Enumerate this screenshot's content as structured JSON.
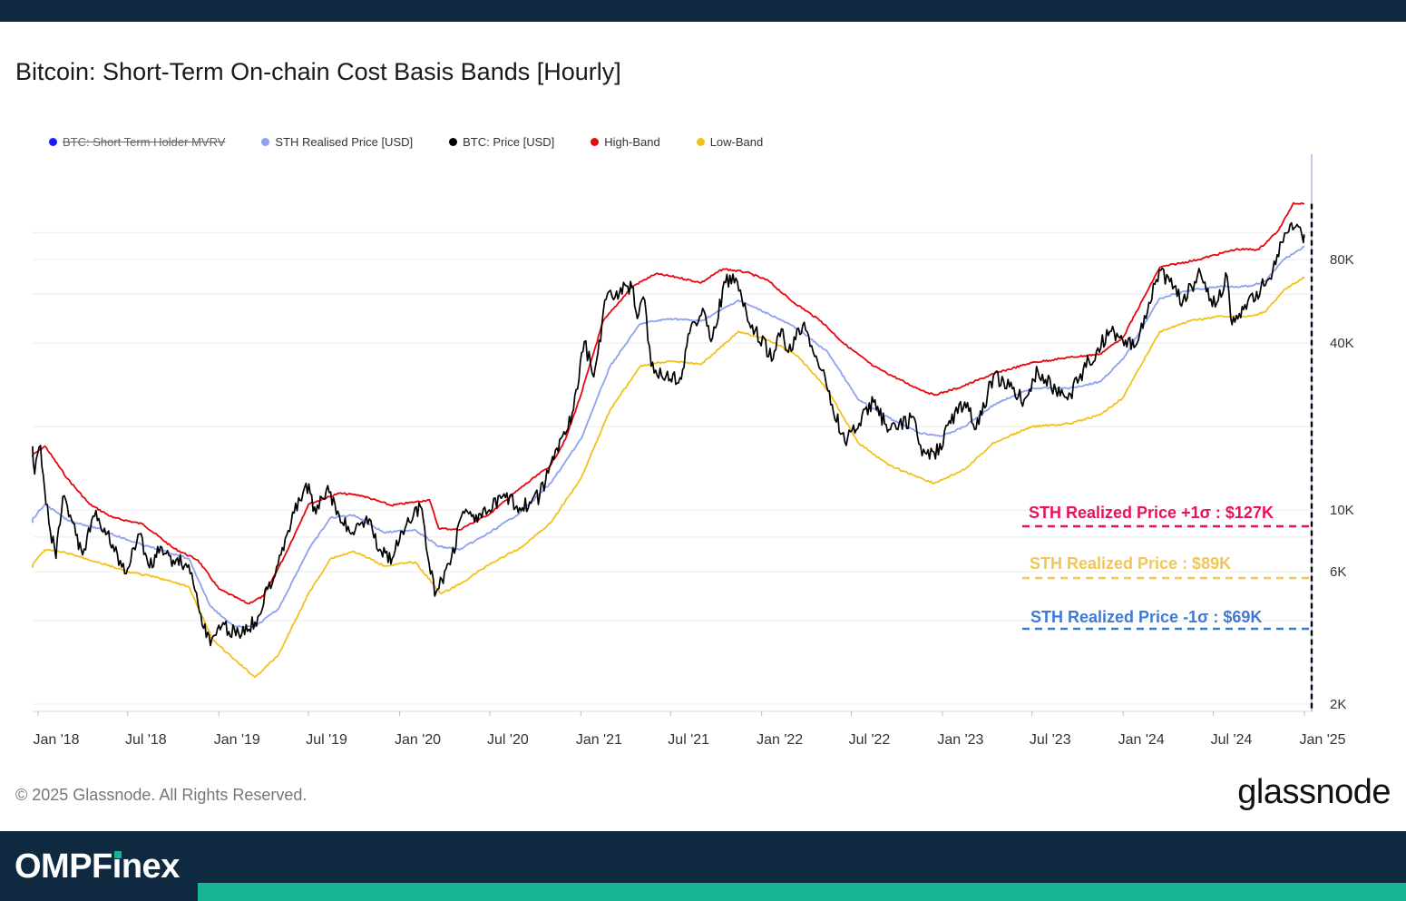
{
  "page": {
    "title": "Bitcoin: Short-Term On-chain Cost Basis Bands [Hourly]",
    "copyright": "© 2025 Glassnode. All Rights Reserved.",
    "brand_logo": "glassnode",
    "footer_brand": {
      "prefix": "OMPF",
      "i": "i",
      "suffix": "nex"
    },
    "colors": {
      "top_bar": "#0f2a40",
      "accent": "#16b692"
    }
  },
  "legend": [
    {
      "label": "BTC: Short Term Holder MVRV",
      "color": "#1a1aff",
      "disabled": true
    },
    {
      "label": "STH Realised Price [USD]",
      "color": "#8ea2f0"
    },
    {
      "label": "BTC: Price [USD]",
      "color": "#000000"
    },
    {
      "label": "High-Band",
      "color": "#e8070f"
    },
    {
      "label": "Low-Band",
      "color": "#f2c11d"
    }
  ],
  "chart_data": {
    "type": "line",
    "scale": "log",
    "ylim": [
      1800,
      200000
    ],
    "xlim": [
      "2017-12-15",
      "2025-01-05"
    ],
    "grid": true,
    "legend_position": "top-left",
    "x_ticks": [
      {
        "label": "Jan '18",
        "date": "2018-01-01"
      },
      {
        "label": "Jul '18",
        "date": "2018-07-01"
      },
      {
        "label": "Jan '19",
        "date": "2019-01-01"
      },
      {
        "label": "Jul '19",
        "date": "2019-07-01"
      },
      {
        "label": "Jan '20",
        "date": "2020-01-01"
      },
      {
        "label": "Jul '20",
        "date": "2020-07-01"
      },
      {
        "label": "Jan '21",
        "date": "2021-01-01"
      },
      {
        "label": "Jul '21",
        "date": "2021-07-01"
      },
      {
        "label": "Jan '22",
        "date": "2022-01-01"
      },
      {
        "label": "Jul '22",
        "date": "2022-07-01"
      },
      {
        "label": "Jan '23",
        "date": "2023-01-01"
      },
      {
        "label": "Jul '23",
        "date": "2023-07-01"
      },
      {
        "label": "Jan '24",
        "date": "2024-01-01"
      },
      {
        "label": "Jul '24",
        "date": "2024-07-01"
      },
      {
        "label": "Jan '25",
        "date": "2025-01-01"
      }
    ],
    "y_ticks": [
      {
        "label": "2K",
        "value": 2000
      },
      {
        "label": "6K",
        "value": 6000
      },
      {
        "label": "10K",
        "value": 10000
      },
      {
        "label": "40K",
        "value": 40000
      },
      {
        "label": "80K",
        "value": 80000
      }
    ],
    "series": [
      {
        "name": "High-Band",
        "color": "#e8070f",
        "points": [
          [
            "2017-12-15",
            15500
          ],
          [
            "2018-01-15",
            17000
          ],
          [
            "2018-03-01",
            13000
          ],
          [
            "2018-04-15",
            10500
          ],
          [
            "2018-06-01",
            9400
          ],
          [
            "2018-08-01",
            8900
          ],
          [
            "2018-10-01",
            7300
          ],
          [
            "2018-11-20",
            6600
          ],
          [
            "2019-01-01",
            5200
          ],
          [
            "2019-03-01",
            4600
          ],
          [
            "2019-04-01",
            4900
          ],
          [
            "2019-05-15",
            6900
          ],
          [
            "2019-07-01",
            10500
          ],
          [
            "2019-09-01",
            11500
          ],
          [
            "2019-10-15",
            11300
          ],
          [
            "2019-12-15",
            10400
          ],
          [
            "2020-02-01",
            10700
          ],
          [
            "2020-03-01",
            10900
          ],
          [
            "2020-03-20",
            8600
          ],
          [
            "2020-05-01",
            8500
          ],
          [
            "2020-07-01",
            9700
          ],
          [
            "2020-09-01",
            12000
          ],
          [
            "2020-11-01",
            14500
          ],
          [
            "2020-12-01",
            18000
          ],
          [
            "2021-01-01",
            26000
          ],
          [
            "2021-02-15",
            48000
          ],
          [
            "2021-04-15",
            64000
          ],
          [
            "2021-06-01",
            71000
          ],
          [
            "2021-07-15",
            69000
          ],
          [
            "2021-09-01",
            66000
          ],
          [
            "2021-10-15",
            74000
          ],
          [
            "2021-12-01",
            72000
          ],
          [
            "2022-01-15",
            67000
          ],
          [
            "2022-03-01",
            57000
          ],
          [
            "2022-05-01",
            48000
          ],
          [
            "2022-06-15",
            40000
          ],
          [
            "2022-08-15",
            33000
          ],
          [
            "2022-11-01",
            28000
          ],
          [
            "2022-12-15",
            26000
          ],
          [
            "2023-02-01",
            27500
          ],
          [
            "2023-04-15",
            31000
          ],
          [
            "2023-07-01",
            34000
          ],
          [
            "2023-09-15",
            35500
          ],
          [
            "2023-11-15",
            36500
          ],
          [
            "2024-01-01",
            42000
          ],
          [
            "2024-03-15",
            75000
          ],
          [
            "2024-06-01",
            80000
          ],
          [
            "2024-08-15",
            87000
          ],
          [
            "2024-10-01",
            87000
          ],
          [
            "2024-11-10",
            102000
          ],
          [
            "2024-12-10",
            128000
          ],
          [
            "2025-01-01",
            127000
          ]
        ]
      },
      {
        "name": "STH Realised Price [USD]",
        "color": "#8ea2f0",
        "points": [
          [
            "2017-12-15",
            9000
          ],
          [
            "2018-01-15",
            10500
          ],
          [
            "2018-03-01",
            9200
          ],
          [
            "2018-05-01",
            8600
          ],
          [
            "2018-07-01",
            7800
          ],
          [
            "2018-09-01",
            7200
          ],
          [
            "2018-11-01",
            6700
          ],
          [
            "2018-12-15",
            4500
          ],
          [
            "2019-02-01",
            3800
          ],
          [
            "2019-03-15",
            3800
          ],
          [
            "2019-05-01",
            4400
          ],
          [
            "2019-07-01",
            7200
          ],
          [
            "2019-08-15",
            9400
          ],
          [
            "2019-10-01",
            9600
          ],
          [
            "2019-12-01",
            8300
          ],
          [
            "2020-02-01",
            8500
          ],
          [
            "2020-03-20",
            7400
          ],
          [
            "2020-05-01",
            7200
          ],
          [
            "2020-07-01",
            8300
          ],
          [
            "2020-09-01",
            9800
          ],
          [
            "2020-11-01",
            12500
          ],
          [
            "2021-01-01",
            18000
          ],
          [
            "2021-03-01",
            33000
          ],
          [
            "2021-05-01",
            47000
          ],
          [
            "2021-07-01",
            49000
          ],
          [
            "2021-09-01",
            48000
          ],
          [
            "2021-11-15",
            57000
          ],
          [
            "2022-01-15",
            51000
          ],
          [
            "2022-03-15",
            45000
          ],
          [
            "2022-05-15",
            37000
          ],
          [
            "2022-07-15",
            25000
          ],
          [
            "2022-09-15",
            21500
          ],
          [
            "2022-11-15",
            19000
          ],
          [
            "2023-01-01",
            18500
          ],
          [
            "2023-02-15",
            20000
          ],
          [
            "2023-04-15",
            24000
          ],
          [
            "2023-07-01",
            27500
          ],
          [
            "2023-09-15",
            27500
          ],
          [
            "2023-11-15",
            29000
          ],
          [
            "2024-01-01",
            35000
          ],
          [
            "2024-03-15",
            58000
          ],
          [
            "2024-05-15",
            62000
          ],
          [
            "2024-07-15",
            64000
          ],
          [
            "2024-09-15",
            64000
          ],
          [
            "2024-10-15",
            67000
          ],
          [
            "2024-11-20",
            80000
          ],
          [
            "2025-01-01",
            89000
          ]
        ]
      },
      {
        "name": "Low-Band",
        "color": "#f2c11d",
        "points": [
          [
            "2017-12-15",
            6200
          ],
          [
            "2018-01-15",
            7200
          ],
          [
            "2018-03-01",
            7000
          ],
          [
            "2018-05-01",
            6500
          ],
          [
            "2018-07-01",
            6000
          ],
          [
            "2018-09-01",
            5700
          ],
          [
            "2018-11-01",
            5300
          ],
          [
            "2018-12-20",
            3400
          ],
          [
            "2019-02-01",
            2900
          ],
          [
            "2019-03-15",
            2500
          ],
          [
            "2019-05-01",
            3000
          ],
          [
            "2019-07-01",
            5000
          ],
          [
            "2019-08-15",
            6700
          ],
          [
            "2019-10-01",
            7100
          ],
          [
            "2019-12-01",
            6300
          ],
          [
            "2020-02-01",
            6500
          ],
          [
            "2020-03-25",
            5000
          ],
          [
            "2020-05-01",
            5400
          ],
          [
            "2020-07-01",
            6400
          ],
          [
            "2020-09-01",
            7300
          ],
          [
            "2020-11-01",
            9000
          ],
          [
            "2021-01-01",
            13000
          ],
          [
            "2021-03-01",
            23000
          ],
          [
            "2021-05-01",
            33000
          ],
          [
            "2021-07-01",
            34500
          ],
          [
            "2021-09-01",
            33500
          ],
          [
            "2021-11-15",
            44000
          ],
          [
            "2022-01-15",
            41000
          ],
          [
            "2022-03-15",
            36000
          ],
          [
            "2022-05-15",
            27000
          ],
          [
            "2022-07-15",
            17500
          ],
          [
            "2022-09-15",
            14500
          ],
          [
            "2022-12-15",
            12500
          ],
          [
            "2023-02-15",
            14000
          ],
          [
            "2023-04-15",
            17500
          ],
          [
            "2023-07-01",
            20000
          ],
          [
            "2023-09-15",
            20500
          ],
          [
            "2023-11-15",
            22000
          ],
          [
            "2024-01-01",
            25500
          ],
          [
            "2024-03-15",
            44000
          ],
          [
            "2024-05-15",
            48000
          ],
          [
            "2024-07-15",
            50000
          ],
          [
            "2024-09-15",
            50000
          ],
          [
            "2024-10-15",
            52000
          ],
          [
            "2024-11-20",
            62000
          ],
          [
            "2025-01-01",
            69000
          ]
        ]
      },
      {
        "name": "BTC: Price [USD]",
        "color": "#000000",
        "points": [
          [
            "2017-12-17",
            17000
          ],
          [
            "2017-12-25",
            13500
          ],
          [
            "2018-01-06",
            17100
          ],
          [
            "2018-01-17",
            10500
          ],
          [
            "2018-02-06",
            6700
          ],
          [
            "2018-02-20",
            11200
          ],
          [
            "2018-03-10",
            9200
          ],
          [
            "2018-04-01",
            6900
          ],
          [
            "2018-04-25",
            9500
          ],
          [
            "2018-05-15",
            8600
          ],
          [
            "2018-06-01",
            7500
          ],
          [
            "2018-06-25",
            5900
          ],
          [
            "2018-07-25",
            8200
          ],
          [
            "2018-08-14",
            6200
          ],
          [
            "2018-09-05",
            7400
          ],
          [
            "2018-10-01",
            6600
          ],
          [
            "2018-11-01",
            6350
          ],
          [
            "2018-11-20",
            4600
          ],
          [
            "2018-12-15",
            3250
          ],
          [
            "2019-01-01",
            3850
          ],
          [
            "2019-02-10",
            3600
          ],
          [
            "2019-03-15",
            3950
          ],
          [
            "2019-04-10",
            5200
          ],
          [
            "2019-05-15",
            7900
          ],
          [
            "2019-06-26",
            12500
          ],
          [
            "2019-07-16",
            9700
          ],
          [
            "2019-08-06",
            11800
          ],
          [
            "2019-09-01",
            9600
          ],
          [
            "2019-09-25",
            8200
          ],
          [
            "2019-10-26",
            9500
          ],
          [
            "2019-11-25",
            7100
          ],
          [
            "2019-12-17",
            6700
          ],
          [
            "2020-01-15",
            8900
          ],
          [
            "2020-02-12",
            10300
          ],
          [
            "2020-03-12",
            4900
          ],
          [
            "2020-04-15",
            6800
          ],
          [
            "2020-05-08",
            9900
          ],
          [
            "2020-06-15",
            9400
          ],
          [
            "2020-07-27",
            11200
          ],
          [
            "2020-09-05",
            10200
          ],
          [
            "2020-10-10",
            11300
          ],
          [
            "2020-11-25",
            18500
          ],
          [
            "2020-12-17",
            23000
          ],
          [
            "2021-01-08",
            40500
          ],
          [
            "2021-01-27",
            30200
          ],
          [
            "2021-02-21",
            57500
          ],
          [
            "2021-03-14",
            61500
          ],
          [
            "2021-04-14",
            63500
          ],
          [
            "2021-04-25",
            49000
          ],
          [
            "2021-05-10",
            57000
          ],
          [
            "2021-05-23",
            33000
          ],
          [
            "2021-06-22",
            30500
          ],
          [
            "2021-07-20",
            30000
          ],
          [
            "2021-08-14",
            47500
          ],
          [
            "2021-09-07",
            52000
          ],
          [
            "2021-09-21",
            40500
          ],
          [
            "2021-10-20",
            66000
          ],
          [
            "2021-11-10",
            68500
          ],
          [
            "2021-12-04",
            48000
          ],
          [
            "2022-01-24",
            35000
          ],
          [
            "2022-02-10",
            45000
          ],
          [
            "2022-02-24",
            37000
          ],
          [
            "2022-03-28",
            47500
          ],
          [
            "2022-05-12",
            28000
          ],
          [
            "2022-06-18",
            17600
          ],
          [
            "2022-08-15",
            24500
          ],
          [
            "2022-09-15",
            19500
          ],
          [
            "2022-11-05",
            21500
          ],
          [
            "2022-11-21",
            15700
          ],
          [
            "2022-12-30",
            16500
          ],
          [
            "2023-01-15",
            21000
          ],
          [
            "2023-02-15",
            24500
          ],
          [
            "2023-03-10",
            19600
          ],
          [
            "2023-04-14",
            30500
          ],
          [
            "2023-06-15",
            25000
          ],
          [
            "2023-07-13",
            31500
          ],
          [
            "2023-09-11",
            25000
          ],
          [
            "2023-10-24",
            34500
          ],
          [
            "2023-12-05",
            44000
          ],
          [
            "2024-01-23",
            38500
          ],
          [
            "2024-03-14",
            73500
          ],
          [
            "2024-05-01",
            57000
          ],
          [
            "2024-06-05",
            71500
          ],
          [
            "2024-07-05",
            54000
          ],
          [
            "2024-07-29",
            69500
          ],
          [
            "2024-08-05",
            49500
          ],
          [
            "2024-09-06",
            53000
          ],
          [
            "2024-10-29",
            73000
          ],
          [
            "2024-11-22",
            99500
          ],
          [
            "2024-12-17",
            107000
          ],
          [
            "2024-12-30",
            92000
          ],
          [
            "2025-01-01",
            96000
          ]
        ]
      }
    ],
    "annotations": [
      {
        "label": "STH Realized Price +1σ : $127K",
        "value": 127000,
        "color": "#e8125c"
      },
      {
        "label": "STH Realized Price  : $89K",
        "value": 89000,
        "color": "#f2c652"
      },
      {
        "label": "STH Realized Price -1σ : $69K",
        "value": 69000,
        "color": "#3e7ad6"
      }
    ]
  }
}
